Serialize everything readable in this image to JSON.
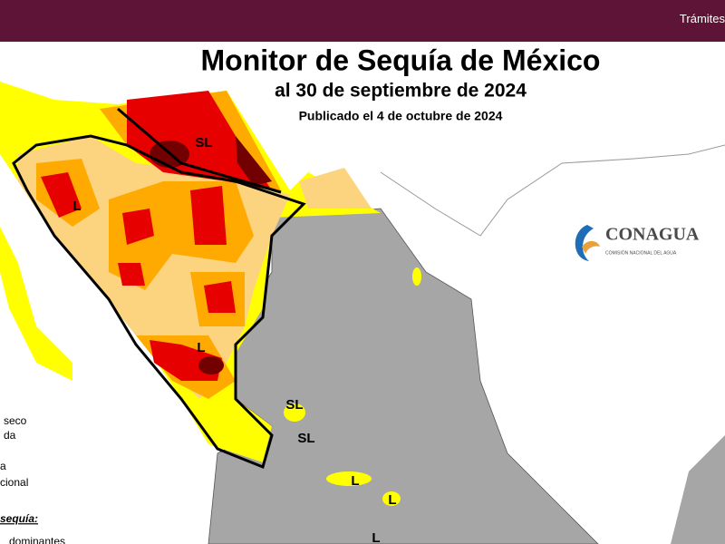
{
  "header": {
    "link": "Trámites"
  },
  "map": {
    "title": "Monitor de Sequía de México",
    "subtitle": "al 30 de septiembre de 2024",
    "published": "Publicado el 4 de octubre de 2024",
    "labels": [
      "SL",
      "L",
      "L",
      "SL",
      "SL",
      "L",
      "L",
      "L"
    ],
    "logo": {
      "name": "CONAGUA",
      "subtitle": "COMISIÓN NACIONAL DEL AGUA"
    },
    "legend_fragments": [
      "seco",
      "da",
      "a",
      "cional",
      "sequía:",
      "dominantes"
    ]
  }
}
